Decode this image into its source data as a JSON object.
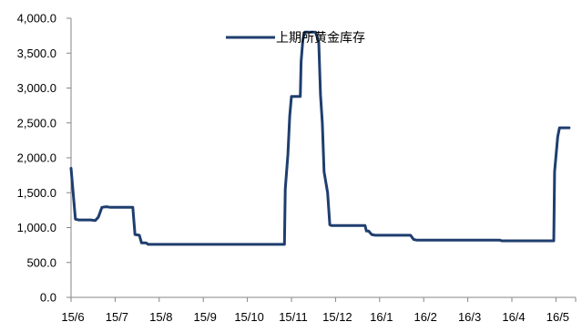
{
  "chart_data": {
    "type": "line",
    "title": "",
    "xlabel": "",
    "ylabel": "",
    "ylim": [
      0,
      4000
    ],
    "y_ticks": [
      "0.0",
      "500.0",
      "1,000.0",
      "1,500.0",
      "2,000.0",
      "2,500.0",
      "3,000.0",
      "3,500.0",
      "4,000.0"
    ],
    "x_ticks": [
      "15/6",
      "15/7",
      "15/8",
      "15/9",
      "15/10",
      "15/11",
      "15/12",
      "16/1",
      "16/2",
      "16/3",
      "16/4",
      "16/5"
    ],
    "grid": false,
    "legend_position": "top-center",
    "colors": {
      "series": "#1f3e6e",
      "axis": "#868686"
    },
    "series": [
      {
        "name": "上期所黄金库存",
        "points": [
          [
            0.0,
            1850
          ],
          [
            0.1,
            1120
          ],
          [
            0.18,
            1110
          ],
          [
            0.45,
            1110
          ],
          [
            0.55,
            1100
          ],
          [
            0.62,
            1150
          ],
          [
            0.7,
            1290
          ],
          [
            0.8,
            1300
          ],
          [
            0.9,
            1290
          ],
          [
            1.0,
            1290
          ],
          [
            1.3,
            1290
          ],
          [
            1.4,
            1290
          ],
          [
            1.45,
            900
          ],
          [
            1.55,
            890
          ],
          [
            1.6,
            780
          ],
          [
            1.7,
            780
          ],
          [
            1.75,
            760
          ],
          [
            1.85,
            760
          ],
          [
            2.0,
            760
          ],
          [
            3.0,
            760
          ],
          [
            4.0,
            760
          ],
          [
            4.8,
            760
          ],
          [
            4.84,
            760
          ],
          [
            4.86,
            1550
          ],
          [
            4.92,
            2050
          ],
          [
            4.96,
            2600
          ],
          [
            5.0,
            2880
          ],
          [
            5.1,
            2880
          ],
          [
            5.2,
            2880
          ],
          [
            5.22,
            3380
          ],
          [
            5.26,
            3700
          ],
          [
            5.3,
            3800
          ],
          [
            5.35,
            3800
          ],
          [
            5.55,
            3800
          ],
          [
            5.62,
            3650
          ],
          [
            5.66,
            2900
          ],
          [
            5.7,
            2500
          ],
          [
            5.74,
            1800
          ],
          [
            5.82,
            1500
          ],
          [
            5.87,
            1040
          ],
          [
            5.9,
            1030
          ],
          [
            6.4,
            1030
          ],
          [
            6.67,
            1030
          ],
          [
            6.7,
            950
          ],
          [
            6.75,
            950
          ],
          [
            6.82,
            900
          ],
          [
            6.9,
            890
          ],
          [
            7.4,
            890
          ],
          [
            7.55,
            890
          ],
          [
            7.7,
            890
          ],
          [
            7.77,
            830
          ],
          [
            7.85,
            820
          ],
          [
            8.0,
            820
          ],
          [
            8.5,
            820
          ],
          [
            9.0,
            820
          ],
          [
            9.5,
            820
          ],
          [
            9.73,
            820
          ],
          [
            9.77,
            810
          ],
          [
            9.85,
            810
          ],
          [
            10.5,
            810
          ],
          [
            10.95,
            810
          ],
          [
            10.97,
            1800
          ],
          [
            11.04,
            2300
          ],
          [
            11.08,
            2430
          ],
          [
            11.3,
            2430
          ]
        ]
      }
    ]
  }
}
